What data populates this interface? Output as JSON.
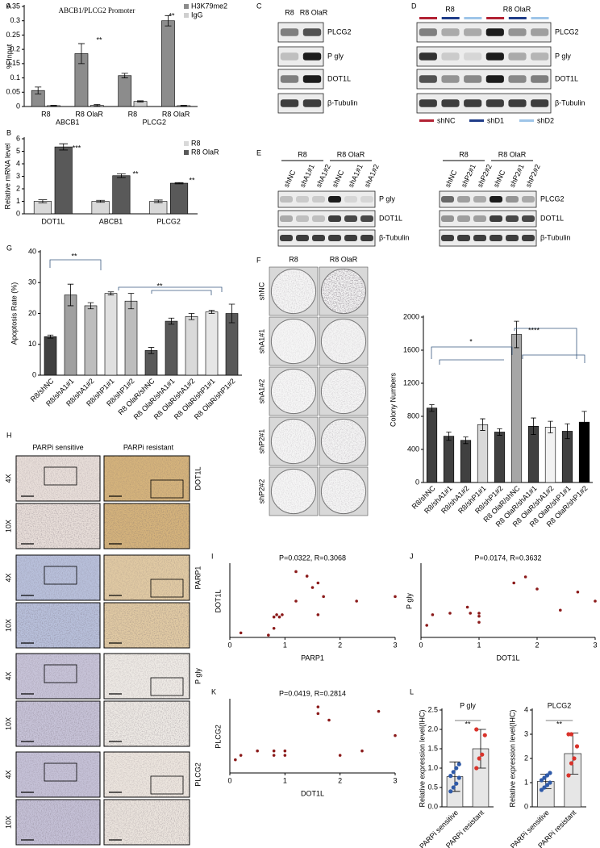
{
  "panel_letters": [
    "A",
    "B",
    "C",
    "D",
    "E",
    "F",
    "G",
    "H",
    "I",
    "J",
    "K",
    "L"
  ],
  "blot_C": {
    "columns": [
      "R8",
      "R8 OlaR"
    ],
    "rows": [
      "PLCG2",
      "P gly",
      "DOT1L",
      "β-Tubulin"
    ]
  },
  "blot_D": {
    "groups": [
      "R8",
      "R8 OlaR"
    ],
    "rows": [
      "PLCG2",
      "P gly",
      "DOT1L",
      "β-Tubulin"
    ],
    "legend": [
      {
        "name": "shNC",
        "color": "#b22234"
      },
      {
        "name": "shD1",
        "color": "#1f3c88"
      },
      {
        "name": "shD2",
        "color": "#9ec5e8"
      }
    ]
  },
  "blot_E1": {
    "groups": [
      "R8",
      "R8 OlaR"
    ],
    "lanes": [
      "shNC",
      "shA1#1",
      "shA1#2",
      "shNC",
      "shA1#1",
      "shA1#2"
    ],
    "rows": [
      "P gly",
      "DOT1L",
      "β-Tubulin"
    ]
  },
  "blot_E2": {
    "groups": [
      "R8",
      "R8 OlaR"
    ],
    "lanes": [
      "shNC",
      "shP2#1",
      "shP2#2",
      "shNC",
      "shP2#1",
      "shP2#2"
    ],
    "rows": [
      "PLCG2",
      "DOT1L",
      "β-Tubulin"
    ]
  },
  "colony_F": {
    "columns": [
      "R8",
      "R8 OlaR"
    ],
    "rows": [
      "shNC",
      "shA1#1",
      "shA1#2",
      "shP2#1",
      "shP2#2"
    ]
  },
  "ihc_H": {
    "columns": [
      "PARPi sensitive",
      "PARPi resistant"
    ],
    "magnifications": [
      "4X",
      "10X"
    ],
    "markers": [
      "DOT1L",
      "PARP1",
      "P gly",
      "PLCG2"
    ]
  },
  "chart_data": [
    {
      "type": "bar",
      "title": "ABCB1/PLCG2 Promoter",
      "ylabel": "% Input",
      "categories": [
        "R8",
        "R8 OlaR",
        "R8",
        "R8 OlaR"
      ],
      "groups": [
        "ABCB1",
        "PLCG2"
      ],
      "series": [
        {
          "name": "H3K79me2",
          "color": "#8c8c8c",
          "values": [
            0.056,
            0.185,
            0.108,
            0.3
          ],
          "errors": [
            0.012,
            0.035,
            0.008,
            0.018
          ]
        },
        {
          "name": "IgG",
          "color": "#cfcfcf",
          "values": [
            0.003,
            0.004,
            0.018,
            0.003
          ],
          "errors": [
            0.001,
            0.003,
            0.002,
            0.001
          ]
        }
      ],
      "ylim": [
        0,
        0.35
      ],
      "yticks": [
        0,
        0.05,
        0.1,
        0.15,
        0.2,
        0.25,
        0.3,
        0.35
      ],
      "annotations": [
        "**",
        "**"
      ]
    },
    {
      "type": "bar",
      "ylabel": "Relative mRNA level",
      "categories": [
        "DOT1L",
        "ABCB1",
        "PLCG2"
      ],
      "series": [
        {
          "name": "R8",
          "color": "#d9d9d9",
          "values": [
            1,
            1,
            1
          ],
          "errors": [
            0.12,
            0.08,
            0.1
          ]
        },
        {
          "name": "R8 OlaR",
          "color": "#595959",
          "values": [
            5.35,
            3.05,
            2.45
          ],
          "errors": [
            0.25,
            0.15,
            0.05
          ]
        }
      ],
      "ylim": [
        0,
        6
      ],
      "yticks": [
        0,
        1,
        2,
        3,
        4,
        5,
        6
      ],
      "annotations": [
        "***",
        "**",
        "**"
      ]
    },
    {
      "type": "bar",
      "ylabel": "Apoptosis Rate (%)",
      "categories": [
        "R8/shNC",
        "R8/shA1#1",
        "R8/shA1#2",
        "R8/shP1#1",
        "R8/shP1#2",
        "R8 OlaR/shNC",
        "R8 OlaR/shA1#1",
        "R8 OlaR/shA1#2",
        "R8 OlaR/shP1#1",
        "R8 OlaR/shP1#2"
      ],
      "series": [
        {
          "values": [
            12.5,
            26,
            22.5,
            26.5,
            24,
            8,
            17.5,
            19,
            20.5,
            20
          ],
          "errors": [
            0.5,
            3.5,
            1,
            0.5,
            2.5,
            1,
            1,
            1,
            0.5,
            3
          ],
          "colors": [
            "#404040",
            "#a0a0a0",
            "#bdbdbd",
            "#e0e0e0",
            "#bdbdbd",
            "#595959",
            "#595959",
            "#d9d9d9",
            "#e6e6e6",
            "#595959"
          ]
        }
      ],
      "ylim": [
        0,
        40
      ],
      "yticks": [
        0,
        10,
        20,
        30,
        40
      ],
      "annotations": [
        "**",
        "**"
      ]
    },
    {
      "type": "bar",
      "ylabel": "Colony Numbers",
      "categories": [
        "R8/shNC",
        "R8/shA1#1",
        "R8/shA1#2",
        "R8/shP1#1",
        "R8/shP1#2",
        "R8 OlaR/shNC",
        "R8 OlaR/shA1#1",
        "R8 OlaR/shA1#2",
        "R8 OlaR/shP1#1",
        "R8 OlaR/shP1#2"
      ],
      "series": [
        {
          "values": [
            900,
            560,
            510,
            700,
            610,
            1790,
            680,
            670,
            620,
            730
          ],
          "errors": [
            40,
            50,
            40,
            70,
            40,
            160,
            100,
            70,
            90,
            130
          ],
          "colors": [
            "#404040",
            "#404040",
            "#404040",
            "#d9d9d9",
            "#404040",
            "#a6a6a6",
            "#404040",
            "#f2f2f2",
            "#404040",
            "#000000"
          ]
        }
      ],
      "ylim": [
        0,
        2000
      ],
      "yticks": [
        0,
        400,
        800,
        1200,
        1600,
        2000
      ],
      "annotations": [
        "*",
        "****"
      ]
    },
    {
      "type": "scatter",
      "title": "P=0.0322, R=0.3068",
      "xlabel": "PARP1",
      "ylabel": "DOT1L",
      "color": "#8b1a1a",
      "x": [
        0.2,
        0.7,
        0.8,
        0.8,
        0.85,
        0.9,
        0.95,
        1.2,
        1.2,
        1.4,
        1.5,
        1.6,
        1.6,
        1.7,
        2.3,
        3.0
      ],
      "y": [
        0.2,
        0.1,
        0.4,
        0.9,
        1.0,
        0.9,
        1.0,
        2.9,
        1.6,
        2.7,
        2.2,
        2.4,
        1.0,
        1.8,
        1.6,
        1.8
      ],
      "xlim": [
        0,
        3
      ],
      "xticks": [
        0,
        1,
        2,
        3
      ],
      "ylim": [
        0,
        3.2
      ]
    },
    {
      "type": "scatter",
      "title": "P=0.0174, R=0.3632",
      "xlabel": "DOT1L",
      "ylabel": "P gly",
      "color": "#8b1a1a",
      "x": [
        0.1,
        0.2,
        0.5,
        0.8,
        0.85,
        1.0,
        1.0,
        1.0,
        1.6,
        1.8,
        2.0,
        2.4,
        2.7,
        3.0
      ],
      "y": [
        0.4,
        0.75,
        0.8,
        1.0,
        0.8,
        0.7,
        0.5,
        0.8,
        1.8,
        2.0,
        1.6,
        0.9,
        1.5,
        1.2
      ],
      "xlim": [
        0,
        3
      ],
      "xticks": [
        0,
        1,
        2,
        3
      ],
      "ylim": [
        0,
        2.4
      ]
    },
    {
      "type": "scatter",
      "title": "P=0.0419, R=0.2814",
      "xlabel": "DOT1L",
      "ylabel": "PLCG2",
      "color": "#8b1a1a",
      "x": [
        0.1,
        0.2,
        0.5,
        0.8,
        0.8,
        1.0,
        1.0,
        1.6,
        1.6,
        1.8,
        2.0,
        2.4,
        2.7,
        3.0
      ],
      "y": [
        0.6,
        0.8,
        1.0,
        0.8,
        1.0,
        0.8,
        1.0,
        3.0,
        2.7,
        2.4,
        0.8,
        1.0,
        2.8,
        1.7
      ],
      "xlim": [
        0,
        3
      ],
      "xticks": [
        0,
        1,
        2,
        3
      ],
      "ylim": [
        0,
        3.3
      ]
    },
    {
      "type": "bar_dot",
      "title": "P gly",
      "ylabel": "Relative expression level(IHC)",
      "categories": [
        "PARPi sensitive",
        "PARPi resistant"
      ],
      "values": [
        0.78,
        1.5
      ],
      "errors": [
        0.38,
        0.5
      ],
      "color": "#e6e6e6",
      "points": [
        [
          0.4,
          0.5,
          0.6,
          0.75,
          0.8,
          0.9,
          1.0,
          1.1
        ],
        [
          1.0,
          1.25,
          1.35,
          1.85,
          2.0
        ]
      ],
      "point_colors": [
        "#2f5aa8",
        "#d9332b"
      ],
      "ylim": [
        0,
        2.5
      ],
      "yticks": [
        {
          "value": 0,
          "label": "0.0"
        },
        0.5,
        {
          "value": 1,
          "label": "1.0"
        },
        1.5,
        {
          "value": 2,
          "label": "2.0"
        },
        2.5
      ],
      "annotations": [
        "**"
      ]
    },
    {
      "type": "bar_dot",
      "title": "PLCG2",
      "ylabel": "Relative expression level(IHC)",
      "categories": [
        "PARPi sensitive",
        "PARPi resistant"
      ],
      "values": [
        1.05,
        2.2
      ],
      "errors": [
        0.3,
        0.85
      ],
      "color": "#e6e6e6",
      "points": [
        [
          0.7,
          0.8,
          0.9,
          1.0,
          1.1,
          1.2,
          1.3,
          1.4
        ],
        [
          1.3,
          1.8,
          2.0,
          2.5,
          3.0,
          3.0
        ]
      ],
      "point_colors": [
        "#2f5aa8",
        "#d9332b"
      ],
      "ylim": [
        0,
        4
      ],
      "yticks": [
        0,
        1,
        2,
        3,
        4
      ],
      "annotations": [
        "**"
      ]
    }
  ]
}
